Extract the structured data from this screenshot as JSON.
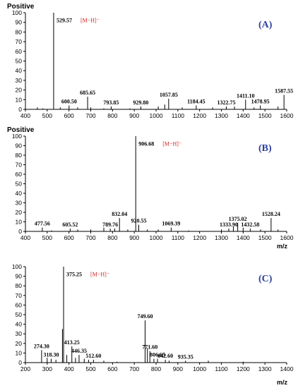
{
  "chart_data": [
    {
      "type": "bar",
      "panel_label": "(A)",
      "polarity": "Positive",
      "xlabel": "",
      "xlim": [
        400,
        1600
      ],
      "ylim": [
        0,
        100
      ],
      "xticks": [
        400,
        500,
        600,
        700,
        800,
        900,
        1000,
        1100,
        1200,
        1300,
        1400,
        1500,
        1600
      ],
      "yticks": [
        0,
        10,
        20,
        30,
        40,
        50,
        60,
        70,
        80,
        90,
        100
      ],
      "base_peak": {
        "mz": 529.57,
        "label": "529.57",
        "ion": "[M−H]⁻"
      },
      "peaks": [
        {
          "mz": 529.57,
          "intensity": 100,
          "label": "529.57"
        },
        {
          "mz": 600.5,
          "intensity": 4,
          "label": "600.50"
        },
        {
          "mz": 685.65,
          "intensity": 13,
          "label": "685.65"
        },
        {
          "mz": 793.85,
          "intensity": 3,
          "label": "793.85"
        },
        {
          "mz": 929.8,
          "intensity": 3,
          "label": "929.80"
        },
        {
          "mz": 1057.85,
          "intensity": 11,
          "label": "1057.85"
        },
        {
          "mz": 1184.45,
          "intensity": 4,
          "label": "1184.45"
        },
        {
          "mz": 1322.75,
          "intensity": 3,
          "label": "1322.75"
        },
        {
          "mz": 1411.1,
          "intensity": 10,
          "label": "1411.10"
        },
        {
          "mz": 1478.95,
          "intensity": 4,
          "label": "1478.95"
        },
        {
          "mz": 1587.55,
          "intensity": 15,
          "label": "1587.55"
        }
      ],
      "minor_peaks": [
        {
          "mz": 455,
          "intensity": 2
        },
        {
          "mz": 480,
          "intensity": 1
        },
        {
          "mz": 560,
          "intensity": 2
        },
        {
          "mz": 640,
          "intensity": 2
        },
        {
          "mz": 700,
          "intensity": 2
        },
        {
          "mz": 760,
          "intensity": 1
        },
        {
          "mz": 880,
          "intensity": 1
        },
        {
          "mz": 1010,
          "intensity": 3
        },
        {
          "mz": 1040,
          "intensity": 5
        },
        {
          "mz": 1120,
          "intensity": 2
        },
        {
          "mz": 1260,
          "intensity": 2
        },
        {
          "mz": 1360,
          "intensity": 3
        },
        {
          "mz": 1450,
          "intensity": 2
        },
        {
          "mz": 1560,
          "intensity": 3
        }
      ]
    },
    {
      "type": "bar",
      "panel_label": "(B)",
      "polarity": "Positive",
      "xlabel": "m/z",
      "xlim": [
        400,
        1600
      ],
      "ylim": [
        0,
        100
      ],
      "xticks": [
        400,
        500,
        600,
        700,
        800,
        900,
        1000,
        1100,
        1200,
        1300,
        1400,
        1500,
        1600
      ],
      "yticks": [
        0,
        10,
        20,
        30,
        40,
        50,
        60,
        70,
        80,
        90,
        100
      ],
      "base_peak": {
        "mz": 906.68,
        "label": "906.68",
        "ion": "[M−H]⁻"
      },
      "peaks": [
        {
          "mz": 477.56,
          "intensity": 4,
          "label": "477.56"
        },
        {
          "mz": 605.52,
          "intensity": 3,
          "label": "605.52"
        },
        {
          "mz": 789.76,
          "intensity": 3,
          "label": "789.76"
        },
        {
          "mz": 832.04,
          "intensity": 14,
          "label": "832.04"
        },
        {
          "mz": 906.68,
          "intensity": 100,
          "label": "906.68"
        },
        {
          "mz": 920.55,
          "intensity": 7,
          "label": "920.55"
        },
        {
          "mz": 1069.39,
          "intensity": 4,
          "label": "1069.39"
        },
        {
          "mz": 1333.9,
          "intensity": 3,
          "label": "1333.90"
        },
        {
          "mz": 1375.02,
          "intensity": 9,
          "label": "1375.02"
        },
        {
          "mz": 1432.58,
          "intensity": 3,
          "label": "1432.58"
        },
        {
          "mz": 1528.24,
          "intensity": 14,
          "label": "1528.24"
        }
      ],
      "minor_peaks": [
        {
          "mz": 520,
          "intensity": 1
        },
        {
          "mz": 640,
          "intensity": 2
        },
        {
          "mz": 700,
          "intensity": 2
        },
        {
          "mz": 760,
          "intensity": 4
        },
        {
          "mz": 810,
          "intensity": 3
        },
        {
          "mz": 870,
          "intensity": 2
        },
        {
          "mz": 960,
          "intensity": 2
        },
        {
          "mz": 1010,
          "intensity": 2
        },
        {
          "mz": 1150,
          "intensity": 1
        },
        {
          "mz": 1300,
          "intensity": 2
        },
        {
          "mz": 1355,
          "intensity": 5
        },
        {
          "mz": 1400,
          "intensity": 4
        },
        {
          "mz": 1480,
          "intensity": 2
        },
        {
          "mz": 1560,
          "intensity": 2
        }
      ]
    },
    {
      "type": "bar",
      "panel_label": "(C)",
      "polarity": "",
      "xlabel": "m/z",
      "xlim": [
        200,
        1400
      ],
      "ylim": [
        0,
        100
      ],
      "xticks": [
        200,
        300,
        400,
        500,
        600,
        700,
        800,
        900,
        1000,
        1100,
        1200,
        1300,
        1400
      ],
      "yticks": [
        0,
        10,
        20,
        30,
        40,
        50,
        60,
        70,
        80,
        90,
        100
      ],
      "base_peak": {
        "mz": 375.25,
        "label": "375.25",
        "ion": "[M−H]⁻"
      },
      "peaks": [
        {
          "mz": 274.3,
          "intensity": 13,
          "label": "274.30"
        },
        {
          "mz": 318.3,
          "intensity": 4,
          "label": "318.30"
        },
        {
          "mz": 375.25,
          "intensity": 100,
          "label": "375.25"
        },
        {
          "mz": 413.25,
          "intensity": 17,
          "label": "413.25"
        },
        {
          "mz": 446.35,
          "intensity": 8,
          "label": "446.35"
        },
        {
          "mz": 512.6,
          "intensity": 3,
          "label": "512.60"
        },
        {
          "mz": 749.6,
          "intensity": 44,
          "label": "749.60"
        },
        {
          "mz": 771.6,
          "intensity": 12,
          "label": "771.60"
        },
        {
          "mz": 806.65,
          "intensity": 4,
          "label": "806.65"
        },
        {
          "mz": 842.6,
          "intensity": 3,
          "label": "842.60"
        },
        {
          "mz": 935.35,
          "intensity": 2,
          "label": "935.35"
        }
      ],
      "minor_peaks": [
        {
          "mz": 300,
          "intensity": 5
        },
        {
          "mz": 340,
          "intensity": 3
        },
        {
          "mz": 370,
          "intensity": 35
        },
        {
          "mz": 390,
          "intensity": 8
        },
        {
          "mz": 430,
          "intensity": 5
        },
        {
          "mz": 470,
          "intensity": 4
        },
        {
          "mz": 490,
          "intensity": 3
        },
        {
          "mz": 560,
          "intensity": 2
        },
        {
          "mz": 620,
          "intensity": 1
        },
        {
          "mz": 760,
          "intensity": 15
        },
        {
          "mz": 790,
          "intensity": 4
        },
        {
          "mz": 860,
          "intensity": 2
        },
        {
          "mz": 1040,
          "intensity": 2
        },
        {
          "mz": 1200,
          "intensity": 1
        }
      ]
    }
  ]
}
